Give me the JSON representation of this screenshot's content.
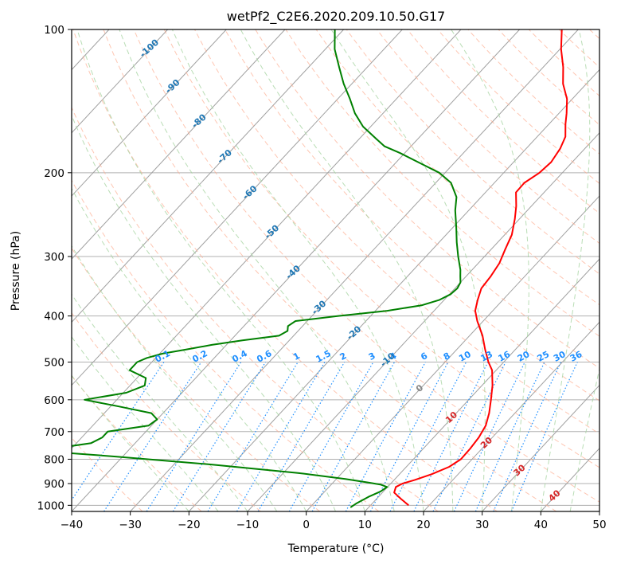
{
  "chart_data": {
    "type": "line",
    "title": "wetPf2_C2E6.2020.209.10.50.G17",
    "xlabel": "Temperature (°C)",
    "ylabel": "Pressure (hPa)",
    "xlim": [
      -40,
      50
    ],
    "ylim": [
      1030,
      100
    ],
    "y_scale": "log",
    "grid": true,
    "x_ticks": [
      -40,
      -30,
      -20,
      -10,
      0,
      10,
      20,
      30,
      40,
      50
    ],
    "x_tick_labels": [
      "−40",
      "−30",
      "−20",
      "−10",
      "0",
      "10",
      "20",
      "30",
      "40",
      "50"
    ],
    "y_ticks": [
      1000,
      900,
      800,
      700,
      600,
      500,
      400,
      300,
      200,
      100
    ],
    "y_tick_labels": [
      "1000",
      "900",
      "800",
      "700",
      "600",
      "500",
      "400",
      "300",
      "200",
      "100"
    ],
    "colors": {
      "temperature": "#ff0000",
      "dewpoint": "#008000",
      "isotherm": "#a0a0a0",
      "dry_adiabat": "#fdae91",
      "moist_adiabat": "#a8d5a2",
      "mixing_ratio": "#1f8fff",
      "cold_label": "#1f77b4",
      "warm_label": "#d62728",
      "zero_label": "#888888"
    },
    "series": [
      {
        "role": "temperature",
        "pressure": [
          1000,
          970,
          940,
          915,
          900,
          885,
          860,
          830,
          800,
          760,
          720,
          680,
          640,
          600,
          560,
          520,
          500,
          470,
          440,
          410,
          390,
          370,
          350,
          330,
          310,
          290,
          270,
          250,
          235,
          220,
          210,
          200,
          190,
          178,
          168,
          158,
          150,
          140,
          130,
          120,
          110,
          100
        ],
        "temperature": [
          16.5,
          14.2,
          12.0,
          11.4,
          12.0,
          13.5,
          15.5,
          17.3,
          18.1,
          18.0,
          17.7,
          17.0,
          15.6,
          13.8,
          11.8,
          9.3,
          7.4,
          4.8,
          2.2,
          -1.0,
          -3.0,
          -4.3,
          -5.5,
          -5.8,
          -6.4,
          -7.6,
          -8.8,
          -10.8,
          -12.6,
          -14.8,
          -14.9,
          -13.9,
          -13.6,
          -14.2,
          -15.2,
          -17.2,
          -18.7,
          -20.9,
          -24.0,
          -26.6,
          -29.8,
          -32.8
        ]
      },
      {
        "role": "dewpoint",
        "pressure": [
          1010,
          990,
          960,
          935,
          915,
          905,
          895,
          880,
          855,
          820,
          790,
          770,
          760,
          740,
          720,
          700,
          680,
          660,
          640,
          620,
          600,
          580,
          560,
          540,
          520,
          500,
          490,
          480,
          470,
          460,
          450,
          440,
          430,
          420,
          410,
          400,
          390,
          380,
          370,
          360,
          350,
          340,
          330,
          320,
          300,
          280,
          260,
          240,
          225,
          210,
          200,
          190,
          182,
          176,
          170,
          160,
          150,
          140,
          130,
          120,
          110,
          100
        ],
        "dewpoint": [
          6.9,
          7.3,
          8.3,
          9.5,
          9.9,
          8.5,
          5.9,
          1.5,
          -7.5,
          -24.0,
          -41.0,
          -54.0,
          -53.0,
          -47.5,
          -46.5,
          -46.5,
          -40.5,
          -40.0,
          -42.0,
          -48.5,
          -55.5,
          -49.5,
          -47.5,
          -48.5,
          -52.5,
          -52.5,
          -51.5,
          -49.5,
          -46.0,
          -42.5,
          -38.0,
          -32.5,
          -31.8,
          -32.5,
          -32.0,
          -25.5,
          -18.0,
          -13.0,
          -10.8,
          -9.8,
          -9.6,
          -10.0,
          -11.0,
          -12.0,
          -14.5,
          -17.0,
          -19.5,
          -22.3,
          -24.2,
          -27.4,
          -31.0,
          -36.3,
          -40.7,
          -44.5,
          -47.0,
          -51.3,
          -54.8,
          -57.9,
          -61.4,
          -64.8,
          -68.4,
          -71.5
        ]
      }
    ],
    "isotherm_labels": [
      "-100",
      "-90",
      "-80",
      "-70",
      "-60",
      "-50",
      "-40",
      "-30",
      "-20",
      "-10",
      "0",
      "10",
      "20",
      "30",
      "40"
    ],
    "mixing_ratio_labels": [
      "0.1",
      "0.2",
      "0.4",
      "0.6",
      "1",
      "1.5",
      "2",
      "3",
      "4",
      "6",
      "8",
      "10",
      "13",
      "16",
      "20",
      "25",
      "30",
      "36"
    ]
  }
}
